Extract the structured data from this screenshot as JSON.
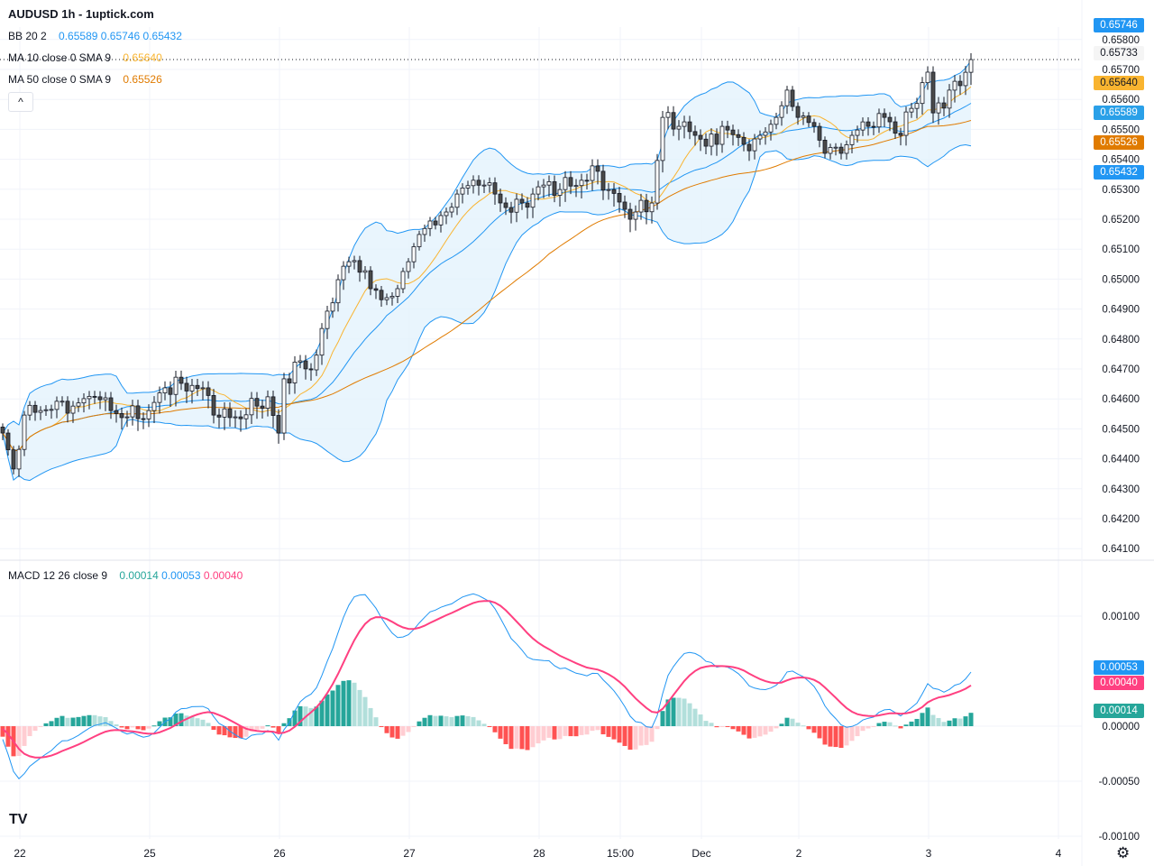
{
  "header": {
    "title": "AUDUSD 1h - 1uptick.com"
  },
  "legends": {
    "bb": {
      "label": "BB 20 2",
      "values": [
        "0.65589",
        "0.65746",
        "0.65432"
      ]
    },
    "ma10": {
      "label": "MA 10 close 0 SMA 9",
      "value": "0.65640"
    },
    "ma50": {
      "label": "MA 50 close 0 SMA 9",
      "value": "0.65526"
    },
    "macd": {
      "label": "MACD 12 26 close 9",
      "values": [
        "0.00014",
        "0.00053",
        "0.00040"
      ]
    },
    "collapse": "^"
  },
  "price_tags": [
    {
      "text": "0.65746",
      "bg": "#2196f3",
      "fg": "#ffffff"
    },
    {
      "text": "0.65733",
      "bg": "#f5f5f5",
      "fg": "#131722"
    },
    {
      "text": "0.65640",
      "bg": "#f9b430",
      "fg": "#131722"
    },
    {
      "text": "0.65589",
      "bg": "#2aa0e8",
      "fg": "#ffffff"
    },
    {
      "text": "0.65526",
      "bg": "#e07b00",
      "fg": "#ffffff"
    },
    {
      "text": "0.65432",
      "bg": "#2196f3",
      "fg": "#ffffff"
    }
  ],
  "macd_tags": [
    {
      "text": "0.00053",
      "bg": "#2196f3",
      "fg": "#ffffff"
    },
    {
      "text": "0.00040",
      "bg": "#ff4081",
      "fg": "#ffffff"
    },
    {
      "text": "0.00014",
      "bg": "#26a69a",
      "fg": "#ffffff"
    }
  ],
  "logo": "TV",
  "colors": {
    "bb": "#2196f3",
    "bbfill": "#e3f2fd",
    "ma10": "#f9b430",
    "ma50": "#e07b00",
    "macd": "#2196f3",
    "signal": "#ff4081",
    "histUp": "#26a69a",
    "histUpFade": "#b2dfdb",
    "histDn": "#ff5252",
    "histDnFade": "#ffcdd2"
  },
  "chart_data": {
    "type": "candlestick",
    "symbol": "AUDUSD",
    "timeframe": "1h",
    "x_ticks": [
      "22",
      "25",
      "26",
      "27",
      "28",
      "15:00",
      "Dec",
      "2",
      "3",
      "4"
    ],
    "y_ticks": [
      "0.65800",
      "0.65700",
      "0.65600",
      "0.65500",
      "0.65400",
      "0.65300",
      "0.65200",
      "0.65100",
      "0.65000",
      "0.64900",
      "0.64800",
      "0.64700",
      "0.64600",
      "0.64500",
      "0.64400",
      "0.64300",
      "0.64200",
      "0.64100"
    ],
    "ylim": [
      0.6408,
      0.658
    ],
    "macd_ticks": [
      "0.00100",
      "0.00000",
      "-0.00050",
      "-0.00100"
    ],
    "macd_ylim": [
      -0.00103,
      0.0012
    ],
    "close_series": {
      "hour": [
        0,
        2,
        4,
        7,
        10,
        13,
        17,
        20,
        23,
        27,
        30,
        33,
        37,
        39,
        43,
        47,
        49,
        51,
        52,
        55,
        57,
        60,
        62,
        64,
        67,
        68,
        71,
        73,
        75,
        77,
        79,
        82,
        84,
        87,
        89,
        91,
        93,
        96,
        98,
        100,
        103,
        107,
        110,
        112,
        115,
        117,
        120,
        122,
        125,
        128,
        132,
        133,
        137,
        140,
        143,
        145,
        147,
        150,
        152,
        155,
        157,
        160,
        163,
        166,
        168,
        171,
        172,
        175,
        177,
        179
      ],
      "close": [
        0.64486,
        0.64366,
        0.64546,
        0.64561,
        0.64592,
        0.64576,
        0.64607,
        0.64561,
        0.6454,
        0.64561,
        0.64637,
        0.64652,
        0.64637,
        0.64546,
        0.6454,
        0.64576,
        0.64607,
        0.64486,
        0.64667,
        0.64727,
        0.64697,
        0.64893,
        0.64998,
        0.65058,
        0.65028,
        0.64968,
        0.64938,
        0.64968,
        0.65058,
        0.65149,
        0.65194,
        0.65224,
        0.65284,
        0.6533,
        0.65314,
        0.65284,
        0.65239,
        0.65254,
        0.65284,
        0.65314,
        0.65299,
        0.6533,
        0.6536,
        0.65299,
        0.65233,
        0.65224,
        0.65254,
        0.6554,
        0.6551,
        0.6548,
        0.6545,
        0.6551,
        0.6545,
        0.6548,
        0.6554,
        0.65631,
        0.6554,
        0.6551,
        0.6542,
        0.6542,
        0.6548,
        0.6551,
        0.6554,
        0.6548,
        0.6557,
        0.65691,
        0.65555,
        0.65631,
        0.65646,
        0.65733
      ]
    }
  }
}
